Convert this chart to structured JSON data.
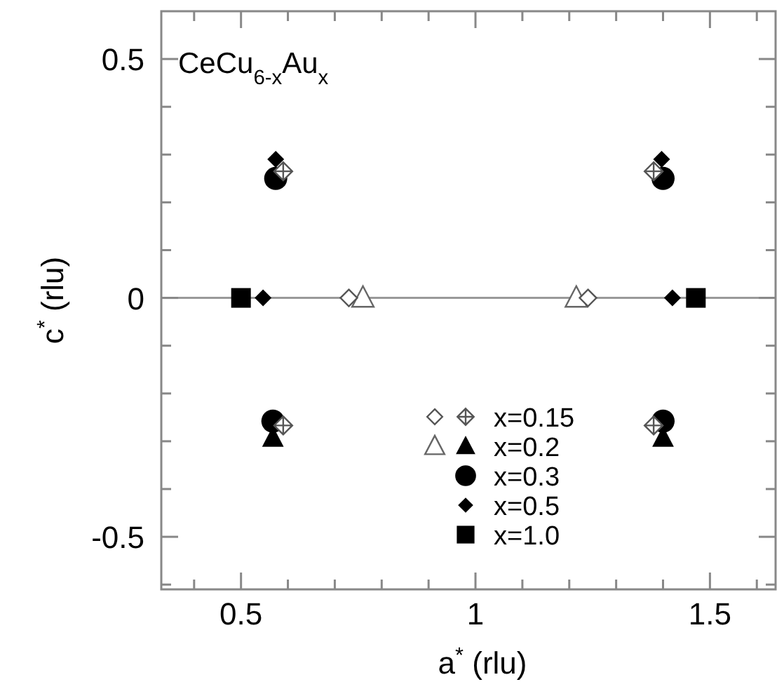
{
  "chart_data": {
    "type": "scatter",
    "xlabel": "a$^{*}$ (rlu)",
    "ylabel": "c$^{*}$ (rlu)",
    "annotations": [
      "CeCu$_{6-x}$Au$_{x}$"
    ],
    "xlim": [
      0.33,
      1.64
    ],
    "ylim": [
      -0.61,
      0.6
    ],
    "xticks": [
      {
        "value": 0.4,
        "label": null
      },
      0.5,
      {
        "value": 0.6,
        "label": null
      },
      {
        "value": 0.7,
        "label": null
      },
      {
        "value": 0.8,
        "label": null
      },
      {
        "value": 0.9,
        "label": null
      },
      1,
      {
        "value": 1.1,
        "label": null
      },
      {
        "value": 1.2,
        "label": null
      },
      {
        "value": 1.3,
        "label": null
      },
      {
        "value": 1.4,
        "label": null
      },
      1.5,
      {
        "value": 1.6,
        "label": null
      }
    ],
    "yticks": [
      {
        "value": -0.6,
        "label": null
      },
      -0.5,
      {
        "value": -0.4,
        "label": null
      },
      {
        "value": -0.3,
        "label": null
      },
      {
        "value": -0.2,
        "label": null
      },
      {
        "value": -0.1,
        "label": null
      },
      0,
      {
        "value": 0.1,
        "label": null
      },
      {
        "value": 0.2,
        "label": null
      },
      {
        "value": 0.3,
        "label": null
      },
      {
        "value": 0.4,
        "label": null
      },
      0.5
    ],
    "ref_lines": [
      {
        "axis": "y",
        "value": 0,
        "color": "#999999"
      }
    ],
    "grid": false,
    "legend": "bottom right",
    "series": [
      {
        "color": "#555555",
        "marker": "diamond",
        "x": [
          0.73,
          1.24
        ],
        "values": [
          0,
          0
        ]
      },
      {
        "name": "x=0.15",
        "color": "#555555",
        "marker": "cross",
        "x": [
          0.59,
          1.38,
          0.59,
          1.38
        ],
        "values": [
          0.265,
          0.265,
          -0.267,
          -0.267
        ]
      },
      {
        "color": "#666666",
        "marker": "triangle",
        "x": [
          0.76,
          1.215
        ],
        "values": [
          0,
          0
        ]
      },
      {
        "name": "x=0.2",
        "color": "#000000",
        "marker": "triangle",
        "x": [
          0.568,
          1.4
        ],
        "values": [
          -0.293,
          -0.293
        ]
      },
      {
        "name": "x=0.3",
        "color": "#000000",
        "marker": "circle",
        "x": [
          0.574,
          1.4,
          0.568,
          1.4
        ],
        "values": [
          0.25,
          0.25,
          -0.258,
          -0.258
        ]
      },
      {
        "name": "x=0.5",
        "color": "#000000",
        "marker": "diamond",
        "x": [
          0.574,
          1.397,
          0.547,
          1.42
        ],
        "values": [
          0.29,
          0.29,
          0,
          0
        ]
      },
      {
        "name": "x=1.0",
        "color": "#000000",
        "marker": "square",
        "x": [
          0.5,
          1.47
        ],
        "values": [
          0,
          0
        ]
      }
    ]
  }
}
